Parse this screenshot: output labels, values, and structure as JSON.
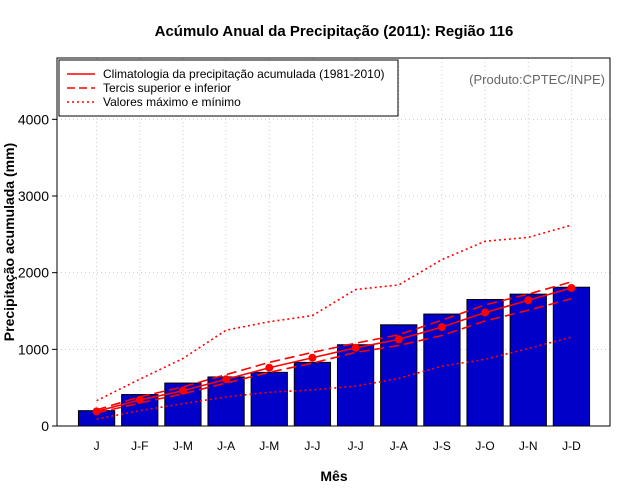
{
  "chart_data": {
    "type": "bar",
    "title": "Acúmulo Anual da Precipitação (2011): Região 116",
    "xlabel": "Mês",
    "ylabel": "Precipitação acumulada (mm)",
    "source_note": "(Produto:CPTEC/INPE)",
    "ylim": [
      0,
      4800
    ],
    "yticks": [
      0,
      1000,
      2000,
      3000,
      4000
    ],
    "grid": true,
    "legend_position": "top-left",
    "categories": [
      "J",
      "J-F",
      "J-M",
      "J-A",
      "J-M",
      "J-J",
      "J-J",
      "J-A",
      "J-S",
      "J-O",
      "J-N",
      "J-D"
    ],
    "bar_color": "#0000c8",
    "line_color": "#ff0000",
    "values": [
      200,
      410,
      560,
      640,
      700,
      830,
      1060,
      1320,
      1460,
      1650,
      1720,
      1810
    ],
    "series": [
      {
        "name": "Climatologia da precipitação acumulada (1981-2010)",
        "style": "solid",
        "markers": true,
        "values": [
          190,
          340,
          460,
          610,
          760,
          890,
          1020,
          1130,
          1290,
          1480,
          1640,
          1800
        ]
      },
      {
        "name": "Tercis superior e inferior",
        "style": "dashed",
        "role": "upper",
        "values": [
          210,
          380,
          510,
          670,
          830,
          960,
          1080,
          1190,
          1380,
          1580,
          1720,
          1880
        ]
      },
      {
        "name": "Tercis superior e inferior",
        "style": "dashed",
        "role": "lower",
        "values": [
          170,
          300,
          420,
          560,
          700,
          820,
          960,
          1050,
          1180,
          1370,
          1510,
          1660
        ]
      },
      {
        "name": "Valores máximo e mínimo",
        "style": "dotted",
        "role": "max",
        "values": [
          330,
          610,
          880,
          1250,
          1360,
          1440,
          1780,
          1840,
          2170,
          2410,
          2460,
          2620
        ]
      },
      {
        "name": "Valores máximo e mínimo",
        "style": "dotted",
        "role": "min",
        "values": [
          90,
          200,
          290,
          380,
          440,
          470,
          520,
          620,
          780,
          870,
          1010,
          1160
        ]
      }
    ],
    "legend": [
      {
        "label": "Climatologia da precipitação acumulada (1981-2010)",
        "style": "solid"
      },
      {
        "label": "Tercis superior e inferior",
        "style": "dashed"
      },
      {
        "label": "Valores máximo e mínimo",
        "style": "dotted"
      }
    ]
  }
}
